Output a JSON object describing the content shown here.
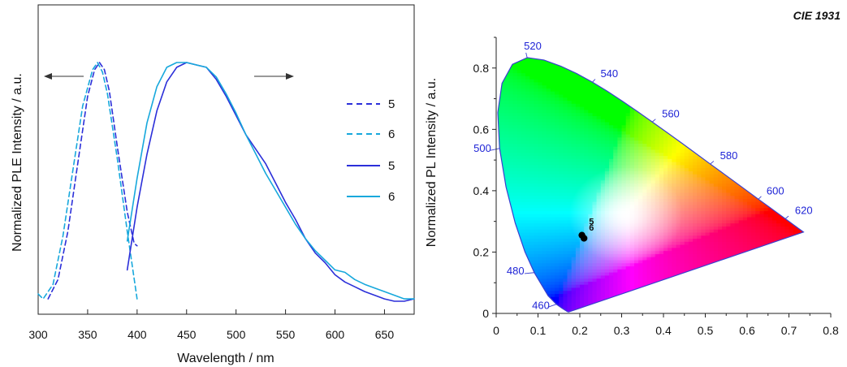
{
  "chart_data": [
    {
      "type": "line",
      "xlabel": "Wavelength / nm",
      "ylabel": "Normalized PLE Intensity / a.u.",
      "xlim": [
        300,
        680
      ],
      "xticks": [
        300,
        350,
        400,
        450,
        500,
        550,
        600,
        650
      ],
      "y_ticks_labeled": false,
      "legend_position": "right",
      "arrows": [
        "left",
        "right"
      ],
      "series": [
        {
          "name": "5",
          "kind": "PLE",
          "style": "dashed",
          "color": "#2b2fd9",
          "x": [
            310,
            320,
            330,
            340,
            350,
            357,
            362,
            367,
            372,
            380,
            390,
            397,
            400
          ],
          "y": [
            0.02,
            0.1,
            0.3,
            0.58,
            0.86,
            0.97,
            1.0,
            0.97,
            0.88,
            0.65,
            0.38,
            0.25,
            0.24
          ]
        },
        {
          "name": "6",
          "kind": "PLE",
          "style": "dashed",
          "color": "#17a8dc",
          "x": [
            300,
            305,
            315,
            325,
            335,
            345,
            355,
            360,
            365,
            370,
            380,
            390,
            400
          ],
          "y": [
            0.04,
            0.02,
            0.08,
            0.28,
            0.55,
            0.82,
            0.97,
            1.0,
            0.96,
            0.87,
            0.6,
            0.3,
            0.02
          ]
        },
        {
          "name": "5",
          "kind": "PL",
          "style": "solid",
          "color": "#2b2fd9",
          "x": [
            390,
            400,
            410,
            420,
            430,
            440,
            450,
            460,
            470,
            480,
            490,
            500,
            510,
            520,
            530,
            540,
            550,
            560,
            570,
            580,
            590,
            600,
            610,
            620,
            630,
            640,
            650,
            660,
            670,
            680
          ],
          "y": [
            0.14,
            0.4,
            0.62,
            0.8,
            0.92,
            0.98,
            1.0,
            0.99,
            0.98,
            0.93,
            0.86,
            0.78,
            0.7,
            0.64,
            0.58,
            0.5,
            0.42,
            0.35,
            0.27,
            0.21,
            0.17,
            0.12,
            0.09,
            0.07,
            0.05,
            0.035,
            0.02,
            0.01,
            0.01,
            0.02
          ]
        },
        {
          "name": "6",
          "kind": "PL",
          "style": "solid",
          "color": "#17a8dc",
          "x": [
            390,
            400,
            410,
            420,
            430,
            440,
            450,
            460,
            470,
            480,
            490,
            500,
            510,
            520,
            530,
            540,
            550,
            560,
            570,
            580,
            590,
            600,
            610,
            620,
            630,
            640,
            650,
            660,
            670,
            680
          ],
          "y": [
            0.26,
            0.52,
            0.75,
            0.9,
            0.98,
            1.0,
            1.0,
            0.99,
            0.98,
            0.94,
            0.87,
            0.79,
            0.7,
            0.62,
            0.54,
            0.47,
            0.4,
            0.33,
            0.27,
            0.22,
            0.18,
            0.14,
            0.13,
            0.1,
            0.08,
            0.065,
            0.05,
            0.035,
            0.02,
            0.02
          ]
        }
      ]
    },
    {
      "type": "scatter",
      "title": "CIE 1931",
      "ylabel": "Normalized PL Intensity / a.u.",
      "xlim": [
        0,
        0.8
      ],
      "ylim": [
        0,
        0.9
      ],
      "xticks": [
        "0",
        "0.1",
        "0.2",
        "0.3",
        "0.4",
        "0.5",
        "0.6",
        "0.7",
        "0.8"
      ],
      "yticks": [
        "0",
        "0.2",
        "0.4",
        "0.6",
        "0.8"
      ],
      "wavelength_labels": [
        {
          "text": "460",
          "x": 0.144,
          "y": 0.03
        },
        {
          "text": "480",
          "x": 0.091,
          "y": 0.133
        },
        {
          "text": "500",
          "x": 0.008,
          "y": 0.538
        },
        {
          "text": "520",
          "x": 0.074,
          "y": 0.834
        },
        {
          "text": "540",
          "x": 0.23,
          "y": 0.754
        },
        {
          "text": "560",
          "x": 0.373,
          "y": 0.624
        },
        {
          "text": "580",
          "x": 0.512,
          "y": 0.487
        },
        {
          "text": "600",
          "x": 0.627,
          "y": 0.372
        },
        {
          "text": "620",
          "x": 0.691,
          "y": 0.308
        }
      ],
      "point_labels": [
        "5",
        "6"
      ],
      "points": [
        {
          "name": "5",
          "x": 0.205,
          "y": 0.255
        },
        {
          "name": "6",
          "x": 0.21,
          "y": 0.245
        }
      ]
    }
  ]
}
